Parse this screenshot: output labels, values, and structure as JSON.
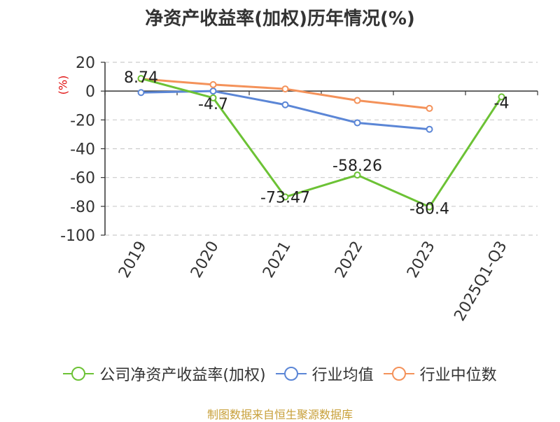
{
  "chart_data": {
    "type": "line",
    "title": "净资产收益率(加权)历年情况(%)",
    "ylabel": "(%)",
    "xlabel": "",
    "categories": [
      "2019",
      "2020",
      "2021",
      "2022",
      "2023",
      "2025Q1-Q3"
    ],
    "ylim": [
      -100,
      20
    ],
    "yticks": [
      20,
      0,
      -20,
      -40,
      -60,
      -80,
      -100
    ],
    "grid": true,
    "legend_position": "bottom",
    "series": [
      {
        "name": "公司净资产收益率(加权)",
        "color": "#6cc235",
        "values": [
          8.74,
          -4.7,
          -73.47,
          -58.26,
          -80.4,
          -4
        ],
        "labels": [
          "8.74",
          "-4.7",
          "-73.47",
          "-58.26",
          "-80.4",
          "-4"
        ]
      },
      {
        "name": "行业均值",
        "color": "#5b86d6",
        "values": [
          -1,
          0,
          -9.5,
          -22,
          -26.5,
          null
        ]
      },
      {
        "name": "行业中位数",
        "color": "#f4925a",
        "values": [
          8.5,
          4.5,
          1.5,
          -6.5,
          -12,
          null
        ]
      }
    ]
  },
  "source": "制图数据来自恒生聚源数据库"
}
